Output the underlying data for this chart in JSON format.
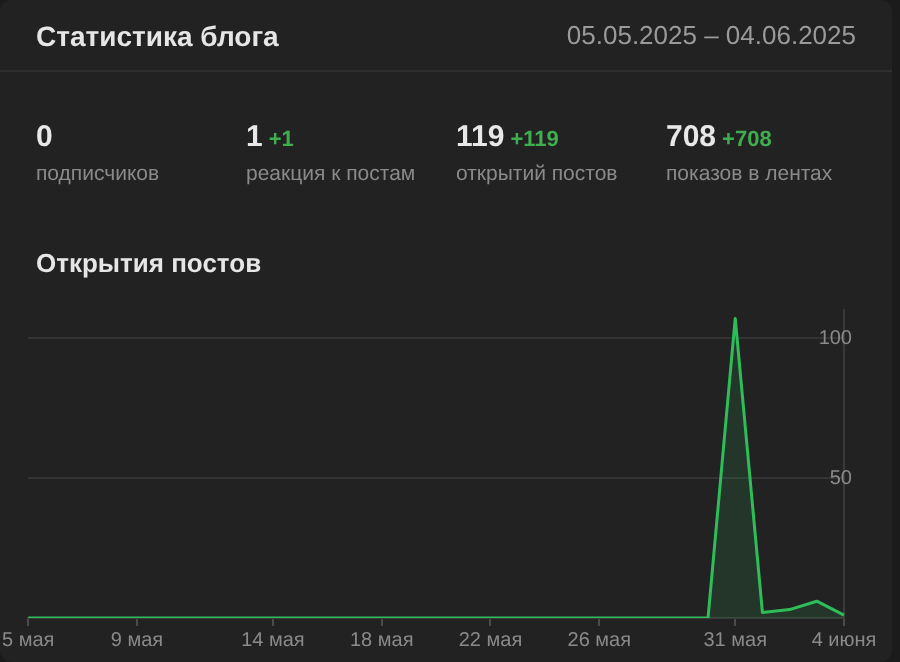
{
  "chart_data": {
    "type": "area",
    "title": "Открытия постов",
    "annotations": [
      "Статистика блога",
      "05.05.2025 – 04.06.2025",
      "0",
      "подписчиков",
      "1",
      "+1",
      "реакция к постам",
      "119",
      "+119",
      "открытий постов",
      "708",
      "+708",
      "показов в лентах"
    ],
    "categories": [
      "5 мая",
      null,
      null,
      null,
      "9 мая",
      null,
      null,
      null,
      null,
      "14 мая",
      null,
      null,
      null,
      "18 мая",
      null,
      null,
      null,
      "22 мая",
      null,
      null,
      null,
      "26 мая",
      null,
      null,
      null,
      null,
      "31 мая",
      null,
      null,
      null,
      "4 июня"
    ],
    "series": [
      {
        "color": "#2ebd59",
        "values": [
          0,
          0,
          0,
          0,
          0,
          0,
          0,
          0,
          0,
          0,
          0,
          0,
          0,
          0,
          0,
          0,
          0,
          0,
          0,
          0,
          0,
          0,
          0,
          0,
          0,
          0,
          107,
          2,
          3,
          6,
          1
        ]
      }
    ],
    "ylim": [
      0,
      110
    ],
    "yticks": [
      {
        "value": 0,
        "label": null
      },
      50,
      100
    ],
    "grid": "y",
    "legend": false,
    "marker": "none",
    "line_style": "solid"
  }
}
